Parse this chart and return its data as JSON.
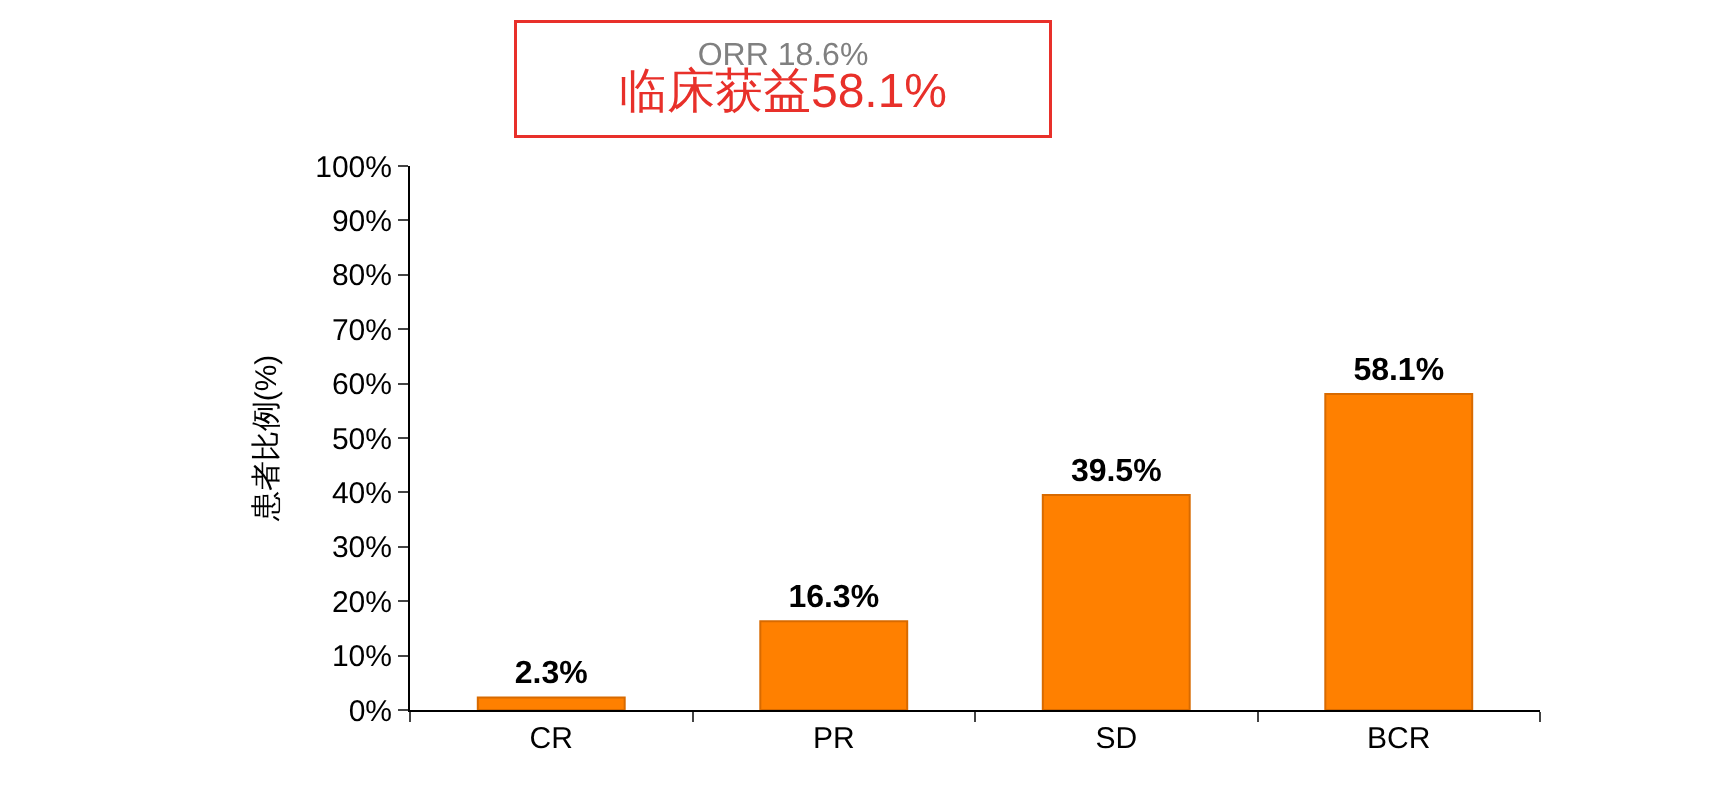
{
  "chart_data": {
    "type": "bar",
    "ylabel": "患者比例(%)",
    "annotations": [
      "ORR 18.6%",
      "临床获益58.1%"
    ],
    "categories": [
      "CR",
      "PR",
      "SD",
      "BCR"
    ],
    "values": [
      2.3,
      16.3,
      39.5,
      58.1
    ],
    "value_labels": [
      "2.3%",
      "16.3%",
      "39.5%",
      "58.1%"
    ],
    "color": "#ff8000",
    "ylim": [
      0,
      100
    ],
    "yticks": [
      {
        "value": 0,
        "label": "0%"
      },
      {
        "value": 10,
        "label": "10%"
      },
      {
        "value": 20,
        "label": "20%"
      },
      {
        "value": 30,
        "label": "30%"
      },
      {
        "value": 40,
        "label": "40%"
      },
      {
        "value": 50,
        "label": "50%"
      },
      {
        "value": 60,
        "label": "60%"
      },
      {
        "value": 70,
        "label": "70%"
      },
      {
        "value": 80,
        "label": "80%"
      },
      {
        "value": 90,
        "label": "90%"
      },
      {
        "value": 100,
        "label": "100%"
      }
    ],
    "grid": false,
    "legend": false
  }
}
